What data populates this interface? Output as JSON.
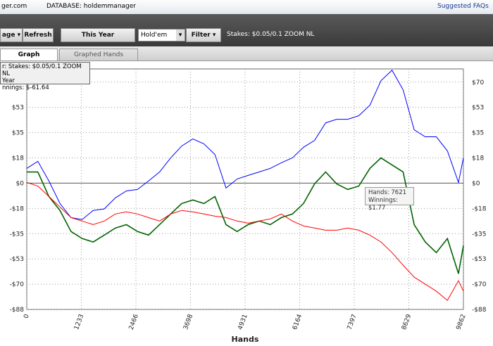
{
  "titlebar": {
    "site": "ger.com",
    "database": "DATABASE: holdemmanager",
    "help": "Suggested FAQs"
  },
  "toolbar": {
    "buttons": [
      "age",
      "Refresh",
      "This Year"
    ],
    "game": "Hold'em",
    "filter": "Filter",
    "stakes": "Stakes: $0.05/0.1 ZOOM NL"
  },
  "tabs": [
    "Graph",
    "Graphed Hands"
  ],
  "legend_box": [
    "r: Stakes: $0.05/0.1 ZOOM NL",
    "Year",
    "nnings: $-61.64"
  ],
  "tooltip": [
    "Hands: 7621",
    "Winnings: $1.77"
  ],
  "chart_data": {
    "type": "line",
    "x_label": "Hands",
    "x": [
      0,
      250,
      500,
      750,
      1000,
      1250,
      1500,
      1750,
      2000,
      2250,
      2500,
      2750,
      3000,
      3250,
      3500,
      3750,
      4000,
      4250,
      4500,
      4750,
      5000,
      5250,
      5500,
      5750,
      6000,
      6250,
      6500,
      6750,
      7000,
      7250,
      7500,
      7750,
      8000,
      8250,
      8500,
      8750,
      9000,
      9250,
      9500,
      9750,
      9862
    ],
    "series": [
      {
        "color": "#0000ff",
        "values": [
          10.3,
          15.2,
          1.5,
          -14.2,
          -24,
          -25.4,
          -19,
          -18,
          -10.3,
          -5.4,
          -4.4,
          1.5,
          7.8,
          17.6,
          25.9,
          30.8,
          27.4,
          20,
          -3.4,
          2.9,
          5.4,
          7.8,
          10.3,
          14.2,
          17.6,
          25,
          29.8,
          42,
          44.5,
          44.5,
          47,
          54.3,
          71.4,
          78.7,
          65,
          37.2,
          32.3,
          32.3,
          22.5,
          0.5,
          17.6
        ]
      },
      {
        "color": "#006400",
        "values": [
          7.8,
          7.8,
          -9.3,
          -19,
          -33.7,
          -38.6,
          -41,
          -36.2,
          -31.3,
          -28.9,
          -33.7,
          -36.2,
          -28.9,
          -21.5,
          -14.2,
          -11.7,
          -14.2,
          -9.3,
          -28.9,
          -33.7,
          -28.9,
          -26.4,
          -28.9,
          -24,
          -21.5,
          -14.2,
          -0.5,
          7.8,
          -0.5,
          -4.4,
          -2,
          10.3,
          17.6,
          12.7,
          7.8,
          -28.9,
          -41,
          -48.4,
          -38.6,
          -63.1,
          -43.5
        ]
      },
      {
        "color": "#ff0000",
        "values": [
          0.5,
          -2,
          -9.3,
          -16.6,
          -24,
          -26.4,
          -28.9,
          -26.4,
          -21.5,
          -20,
          -21.5,
          -24,
          -26.4,
          -21.5,
          -19,
          -20,
          -21.5,
          -23,
          -24,
          -26.4,
          -27.9,
          -26.4,
          -24.9,
          -21.5,
          -26.4,
          -29.8,
          -31.3,
          -32.8,
          -32.8,
          -31.3,
          -32.8,
          -36.2,
          -41,
          -48.4,
          -57.2,
          -65.5,
          -70.4,
          -75.3,
          -81.7,
          -68,
          -75.3
        ]
      }
    ],
    "xlim": [
      0,
      9862
    ],
    "xticks": [
      0,
      1233,
      2466,
      3698,
      4931,
      6164,
      7397,
      8629,
      9862
    ],
    "ylim": [
      -88,
      79.6
    ],
    "yticks": [
      {
        "value": 70.4,
        "label": "$70"
      },
      {
        "value": 52.8,
        "label": "$53"
      },
      {
        "value": 35.2,
        "label": "$35"
      },
      {
        "value": 17.6,
        "label": "$18"
      },
      {
        "value": 0,
        "label": "$0"
      },
      {
        "value": -17.6,
        "label": "-$18"
      },
      {
        "value": -35.2,
        "label": "-$35"
      },
      {
        "value": -52.8,
        "label": "-$53"
      },
      {
        "value": -70.4,
        "label": "-$70"
      },
      {
        "value": -88,
        "label": "-$88"
      }
    ],
    "grid": true
  }
}
